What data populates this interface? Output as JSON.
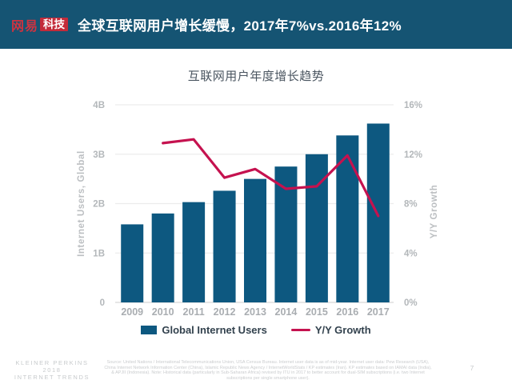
{
  "header": {
    "logo_brand": "网易",
    "logo_sub": "科技",
    "title": "全球互联网用户增长缓慢，2017年7%vs.2016年12%"
  },
  "chart_data": {
    "type": "bar",
    "title": "互联网用户年度增长趋势",
    "categories": [
      "2009",
      "2010",
      "2011",
      "2012",
      "2013",
      "2014",
      "2015",
      "2016",
      "2017"
    ],
    "series": [
      {
        "name": "Global Internet Users",
        "type": "bar",
        "axis": "left",
        "unit": "B",
        "color": "#0d5880",
        "values": [
          1.58,
          1.8,
          2.03,
          2.26,
          2.5,
          2.75,
          3.0,
          3.38,
          3.62
        ]
      },
      {
        "name": "Y/Y Growth",
        "type": "line",
        "axis": "right",
        "unit": "%",
        "color": "#c5124f",
        "values": [
          null,
          12.9,
          13.2,
          10.1,
          10.8,
          9.2,
          9.4,
          11.9,
          7.0
        ]
      }
    ],
    "left_axis": {
      "label": "Internet Users, Global",
      "min": 0,
      "max": 4,
      "ticks": [
        "0",
        "1B",
        "2B",
        "3B",
        "4B"
      ]
    },
    "right_axis": {
      "label": "Y/Y Growth",
      "min": 0,
      "max": 16,
      "ticks": [
        "0%",
        "4%",
        "8%",
        "12%",
        "16%"
      ]
    },
    "grid": true,
    "legend_position": "bottom"
  },
  "footer": {
    "brand_line1": "KLEINER PERKINS",
    "brand_line2": "2018",
    "brand_line3": "INTERNET TRENDS",
    "source": "Source: United Nations / International Telecommunications Union, USA Census Bureau. Internet user data is as of mid-year. Internet user data: Pew Research (USA), China Internet Network Information Center (China), Islamic Republic News Agency / InternetWorldStats / KP estimates (Iran). KP estimates based on IAMAI data (India), & APJII (Indonesia). Note: Historical data (particularly in Sub-Saharan Africa) revised by ITU in 2017 to better account for dual-SIM subscriptions (i.e. two Internet subscriptions per single smartphone user).",
    "page": "7"
  },
  "colors": {
    "banner_bg": "#155473",
    "logo_red": "#c32b3a",
    "bar": "#0d5880",
    "line": "#c5124f",
    "grid": "#ececec",
    "baseline": "#d8d8d8"
  }
}
